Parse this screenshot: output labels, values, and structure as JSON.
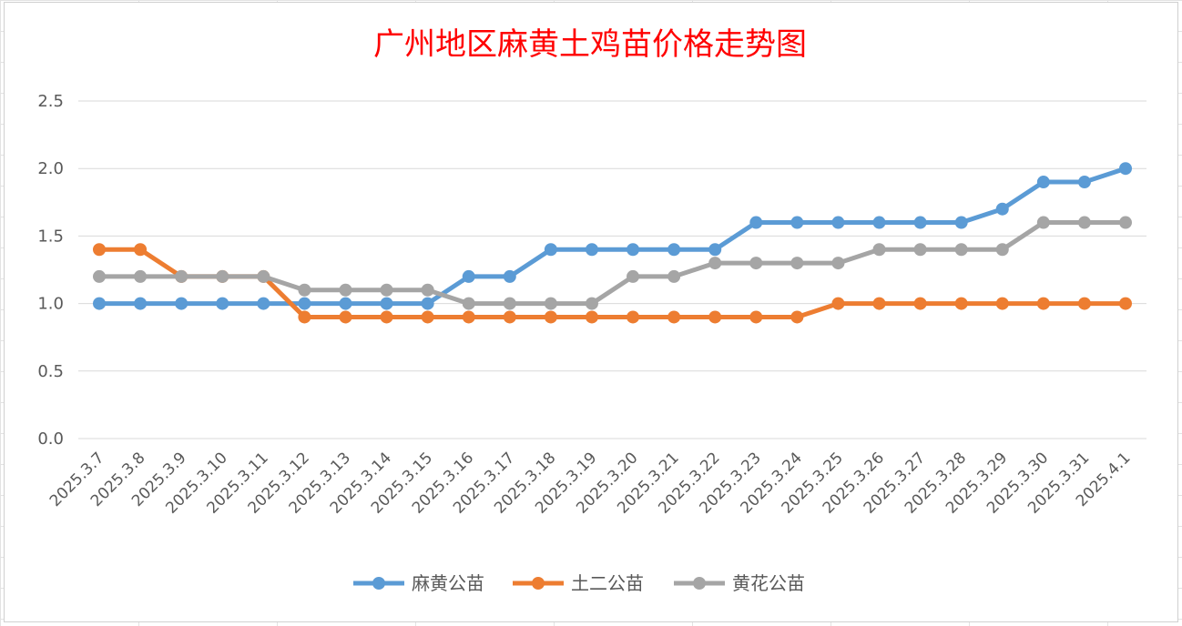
{
  "chart_data": {
    "type": "line",
    "title": "广州地区麻黄土鸡苗价格走势图",
    "xlabel": "",
    "ylabel": "",
    "ylim": [
      0,
      2.5
    ],
    "yticks": [
      "0.0",
      "0.5",
      "1.0",
      "1.5",
      "2.0",
      "2.5"
    ],
    "grid": true,
    "legend": "bottom",
    "categories": [
      "2025.3.7",
      "2025.3.8",
      "2025.3.9",
      "2025.3.10",
      "2025.3.11",
      "2025.3.12",
      "2025.3.13",
      "2025.3.14",
      "2025.3.15",
      "2025.3.16",
      "2025.3.17",
      "2025.3.18",
      "2025.3.19",
      "2025.3.20",
      "2025.3.21",
      "2025.3.22",
      "2025.3.23",
      "2025.3.24",
      "2025.3.25",
      "2025.3.26",
      "2025.3.27",
      "2025.3.28",
      "2025.3.29",
      "2025.3.30",
      "2025.3.31",
      "2025.4.1"
    ],
    "series": [
      {
        "name": "麻黄公苗",
        "color": "#5b9bd5",
        "values": [
          1.0,
          1.0,
          1.0,
          1.0,
          1.0,
          1.0,
          1.0,
          1.0,
          1.0,
          1.2,
          1.2,
          1.4,
          1.4,
          1.4,
          1.4,
          1.4,
          1.6,
          1.6,
          1.6,
          1.6,
          1.6,
          1.6,
          1.7,
          1.9,
          1.9,
          2.0
        ]
      },
      {
        "name": "土二公苗",
        "color": "#ed7d31",
        "values": [
          1.4,
          1.4,
          1.2,
          1.2,
          1.2,
          0.9,
          0.9,
          0.9,
          0.9,
          0.9,
          0.9,
          0.9,
          0.9,
          0.9,
          0.9,
          0.9,
          0.9,
          0.9,
          1.0,
          1.0,
          1.0,
          1.0,
          1.0,
          1.0,
          1.0,
          1.0
        ]
      },
      {
        "name": "黄花公苗",
        "color": "#a5a5a5",
        "values": [
          1.2,
          1.2,
          1.2,
          1.2,
          1.2,
          1.1,
          1.1,
          1.1,
          1.1,
          1.0,
          1.0,
          1.0,
          1.0,
          1.2,
          1.2,
          1.3,
          1.3,
          1.3,
          1.3,
          1.4,
          1.4,
          1.4,
          1.4,
          1.6,
          1.6,
          1.6
        ]
      }
    ]
  }
}
